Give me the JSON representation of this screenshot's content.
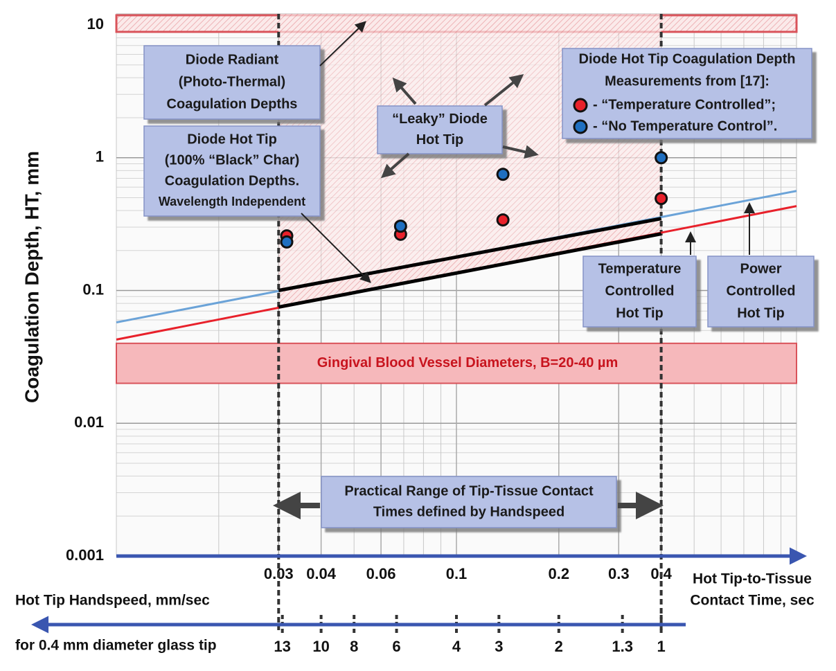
{
  "chart_data": {
    "type": "scatter",
    "y_label": "Coagulation Depth, HT, mm",
    "x_label": [
      "Hot Tip-to-Tissue",
      "Contact Time, sec"
    ],
    "xlim": [
      0.01,
      1
    ],
    "ylim": [
      0.001,
      10
    ],
    "log_x": true,
    "log_y": true,
    "grid": true,
    "xticks": [
      0.03,
      0.04,
      0.06,
      0.1,
      0.2,
      0.3,
      0.4
    ],
    "yticks": [
      0.001,
      0.01,
      0.1,
      1,
      10
    ],
    "x2_label": [
      "Hot Tip Handspeed, mm/sec",
      "for 0.4 mm diameter glass tip"
    ],
    "x2lim": [
      40,
      0.4
    ],
    "x2ticks": [
      13,
      10,
      8,
      6,
      4,
      3,
      2,
      1.3,
      1
    ],
    "series": [
      {
        "name": "- “Temperature Controlled”;",
        "color": "#e8212b",
        "x": [
          0.0317,
          0.0685,
          0.137,
          0.4
        ],
        "values": [
          0.258,
          0.265,
          0.34,
          0.493
        ]
      },
      {
        "name": "- “No Temperature Control”.",
        "color": "#1f6fc0",
        "x": [
          0.0317,
          0.0685,
          0.137,
          0.4
        ],
        "values": [
          0.232,
          0.305,
          0.75,
          1.0
        ]
      }
    ],
    "lines": [
      {
        "color": "#e8212b",
        "x": [
          0.01,
          1
        ],
        "values": [
          0.0427,
          0.432
        ]
      },
      {
        "color": "#6ba3d8",
        "x": [
          0.01,
          1
        ],
        "values": [
          0.0575,
          0.562
        ]
      },
      {
        "color": "#000000",
        "x": [
          0.03,
          0.4
        ],
        "values": [
          0.1,
          0.348
        ]
      },
      {
        "color": "#000000",
        "x": [
          0.03,
          0.4
        ],
        "values": [
          0.075,
          0.267
        ]
      }
    ],
    "band": {
      "label": "Gingival Blood Vessel Diameters, B=20-40 µm",
      "range": [
        0.02,
        0.04
      ],
      "color": "#f6b8bb"
    },
    "range_lines": [
      0.03,
      0.4
    ],
    "legend_title": [
      "Diode Hot Tip Coagulation Depth",
      "Measurements from [17]:"
    ],
    "annotations": [
      {
        "lines": [
          "Diode  Radiant",
          "(Photo-Thermal)",
          "Coagulation Depths"
        ]
      },
      {
        "lines": [
          "Diode Hot Tip",
          "(100% “Black” Char)",
          "Coagulation Depths.",
          "Wavelength Independent"
        ]
      },
      {
        "lines": [
          "“Leaky” Diode",
          "Hot Tip"
        ]
      },
      {
        "lines": [
          "Temperature",
          "Controlled",
          "Hot Tip"
        ]
      },
      {
        "lines": [
          "Power",
          "Controlled",
          "Hot Tip"
        ]
      },
      {
        "lines": [
          "Practical Range of Tip-Tissue Contact",
          "Times defined by Handspeed"
        ]
      }
    ]
  }
}
